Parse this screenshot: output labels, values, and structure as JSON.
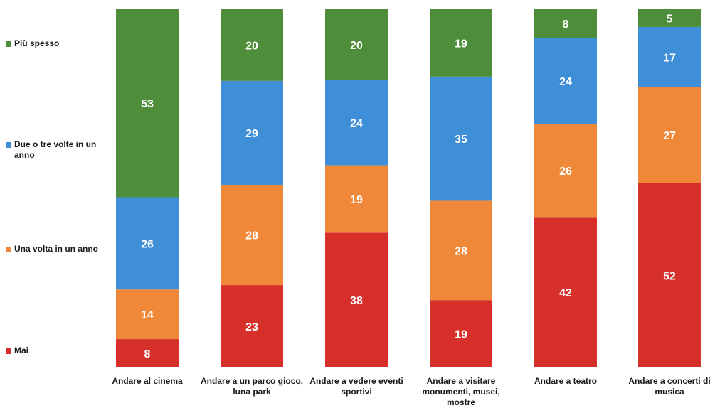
{
  "chart_data": {
    "type": "bar",
    "stacked": true,
    "normalized": true,
    "categories": [
      "Andare al cinema",
      "Andare a un parco gioco, luna park",
      "Andare a vedere eventi sportivi",
      "Andare a visitare monumenti, musei, mostre",
      "Andare a teatro",
      "Andare a concerti di musica"
    ],
    "series": [
      {
        "name": "Mai",
        "color": "#d7302a",
        "values": [
          8,
          23,
          38,
          19,
          42,
          52
        ]
      },
      {
        "name": "Una volta in un anno",
        "color": "#f0883a",
        "values": [
          14,
          28,
          19,
          28,
          26,
          27
        ]
      },
      {
        "name": "Due o tre volte in un anno",
        "color": "#3f8fd8",
        "values": [
          26,
          29,
          24,
          35,
          24,
          17
        ]
      },
      {
        "name": "Più spesso",
        "color": "#4e8d3a",
        "values": [
          53,
          20,
          20,
          19,
          8,
          5
        ]
      }
    ],
    "legend_position": "left",
    "grid": false
  }
}
